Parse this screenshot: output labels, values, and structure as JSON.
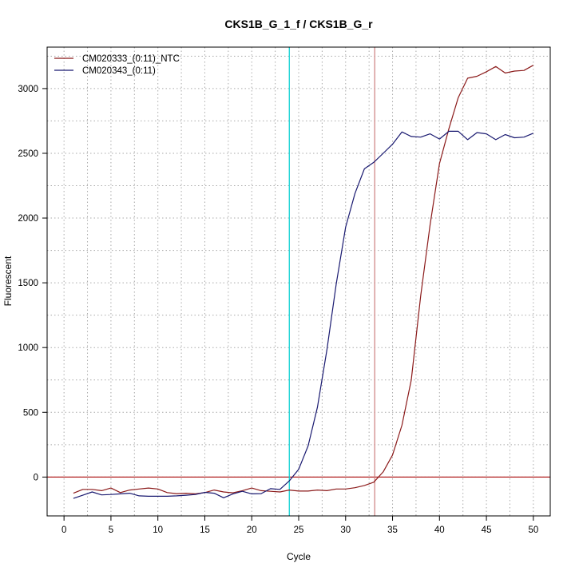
{
  "chart_data": {
    "type": "line",
    "title": "CKS1B_G_1_f / CKS1B_G_r",
    "xlabel": "Cycle",
    "ylabel": "Fluorescent",
    "xlim": [
      -1.8,
      51.8
    ],
    "ylim": [
      -300,
      3320
    ],
    "xticks": [
      0,
      5,
      10,
      15,
      20,
      25,
      30,
      35,
      40,
      45,
      50
    ],
    "yticks": [
      0,
      500,
      1000,
      1500,
      2000,
      2500,
      3000
    ],
    "grid": true,
    "legend_position": "top-left",
    "threshold": {
      "value": 0,
      "color": "#b22222"
    },
    "vertical_markers": [
      {
        "x": 24.0,
        "color": "#00ced1"
      },
      {
        "x": 33.1,
        "color": "#cd7f7f"
      }
    ],
    "x": [
      1,
      2,
      3,
      4,
      5,
      6,
      7,
      8,
      9,
      10,
      11,
      12,
      13,
      14,
      15,
      16,
      17,
      18,
      19,
      20,
      21,
      22,
      23,
      24,
      25,
      26,
      27,
      28,
      29,
      30,
      31,
      32,
      33,
      34,
      35,
      36,
      37,
      38,
      39,
      40,
      41,
      42,
      43,
      44,
      45,
      46,
      47,
      48,
      49,
      50
    ],
    "series": [
      {
        "name": "CM020333_(0:11)_NTC",
        "color": "#8b1a1a",
        "values": [
          -125,
          -95,
          -95,
          -105,
          -85,
          -120,
          -100,
          -92,
          -85,
          -92,
          -120,
          -128,
          -125,
          -130,
          -120,
          -100,
          -115,
          -122,
          -105,
          -85,
          -105,
          -110,
          -115,
          -100,
          -108,
          -108,
          -100,
          -105,
          -92,
          -92,
          -82,
          -65,
          -40,
          40,
          170,
          400,
          750,
          1400,
          1950,
          2420,
          2690,
          2930,
          3080,
          3095,
          3130,
          3170,
          3120,
          3135,
          3140,
          3180
        ]
      },
      {
        "name": "CM020343_(0:11)",
        "color": "#191970",
        "values": [
          -165,
          -140,
          -115,
          -138,
          -135,
          -130,
          -125,
          -145,
          -148,
          -148,
          -148,
          -145,
          -140,
          -135,
          -118,
          -125,
          -160,
          -130,
          -110,
          -130,
          -128,
          -90,
          -95,
          -30,
          60,
          240,
          540,
          980,
          1490,
          1930,
          2190,
          2380,
          2430,
          2500,
          2570,
          2665,
          2630,
          2625,
          2650,
          2610,
          2670,
          2670,
          2605,
          2660,
          2650,
          2605,
          2645,
          2620,
          2625,
          2655
        ]
      }
    ]
  }
}
